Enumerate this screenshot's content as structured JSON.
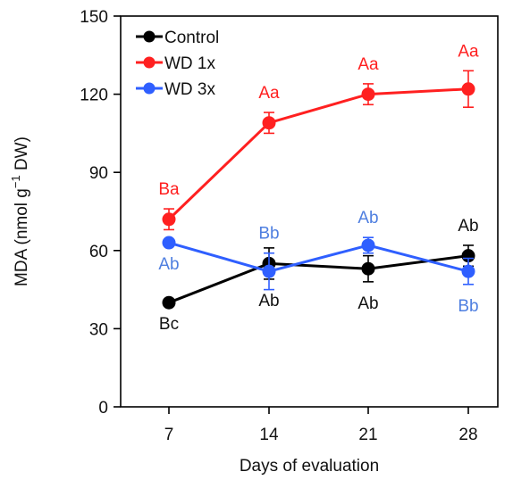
{
  "chart_data": {
    "type": "line",
    "title": "",
    "xlabel": "Days of evaluation",
    "ylabel_parts": {
      "pre": "MDA (nmol g",
      "sup": "−1",
      "post": " DW)"
    },
    "x": [
      7,
      14,
      21,
      28
    ],
    "x_tick_labels": [
      "7",
      "14",
      "21",
      "28"
    ],
    "ylim": [
      0,
      150
    ],
    "y_ticks": [
      0,
      30,
      60,
      90,
      120,
      150
    ],
    "y_tick_labels": [
      "0",
      "30",
      "60",
      "90",
      "120",
      "150"
    ],
    "grid": false,
    "legend_position": "top-left",
    "series": [
      {
        "name": "Control",
        "color": "#000000",
        "values": [
          40,
          55,
          53,
          58
        ],
        "errors": [
          0,
          6,
          5,
          4
        ],
        "annotations": [
          "Bc",
          "Ab",
          "Ab",
          "Ab"
        ],
        "annotation_side": [
          "below",
          "below",
          "below",
          "above"
        ]
      },
      {
        "name": "WD 1x",
        "color": "#ff2020",
        "values": [
          72,
          109,
          120,
          122
        ],
        "errors": [
          4,
          4,
          4,
          7
        ],
        "annotations": [
          "Ba",
          "Aa",
          "Aa",
          "Aa"
        ],
        "annotation_side": [
          "above",
          "above",
          "above",
          "above"
        ]
      },
      {
        "name": "WD 3x",
        "color": "#2f5fff",
        "values": [
          63,
          52,
          62,
          52
        ],
        "errors": [
          0,
          7,
          3,
          5
        ],
        "annotations": [
          "Ab",
          "Bb",
          "Ab",
          "Bb"
        ],
        "annotation_side": [
          "below",
          "above",
          "above",
          "below"
        ]
      }
    ],
    "annotation_colors": [
      "#111111",
      "#ff2020",
      "#4f7fe0"
    ]
  }
}
